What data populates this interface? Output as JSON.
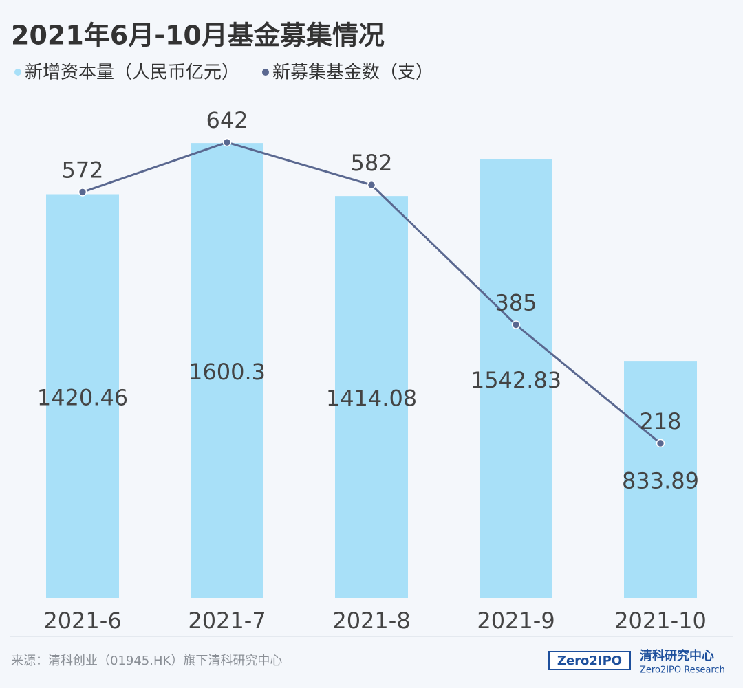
{
  "chart_data": {
    "type": "bar",
    "title": "2021年6月-10月基金募集情况",
    "categories": [
      "2021-6",
      "2021-7",
      "2021-8",
      "2021-9",
      "2021-10"
    ],
    "series": [
      {
        "name": "新增资本量（人民币亿元）",
        "color": "#a8e0f8",
        "type": "bar",
        "values": [
          1420.46,
          1600.3,
          1414.08,
          1542.83,
          833.89
        ]
      },
      {
        "name": "新募集基金数（支）",
        "color": "#5a6890",
        "type": "line",
        "axis": "y2",
        "values": [
          572,
          642,
          582,
          385,
          218
        ]
      }
    ],
    "ylim": [
      0,
      1765
    ],
    "y2lim": [
      0,
      707
    ],
    "legend": "top-left"
  },
  "footer": {
    "source": "来源：清科创业（01945.HK）旗下清科研究中心",
    "logo": "Zero2IPO",
    "brand": "清科研究中心",
    "brand_en": "Zero2IPO Research"
  }
}
